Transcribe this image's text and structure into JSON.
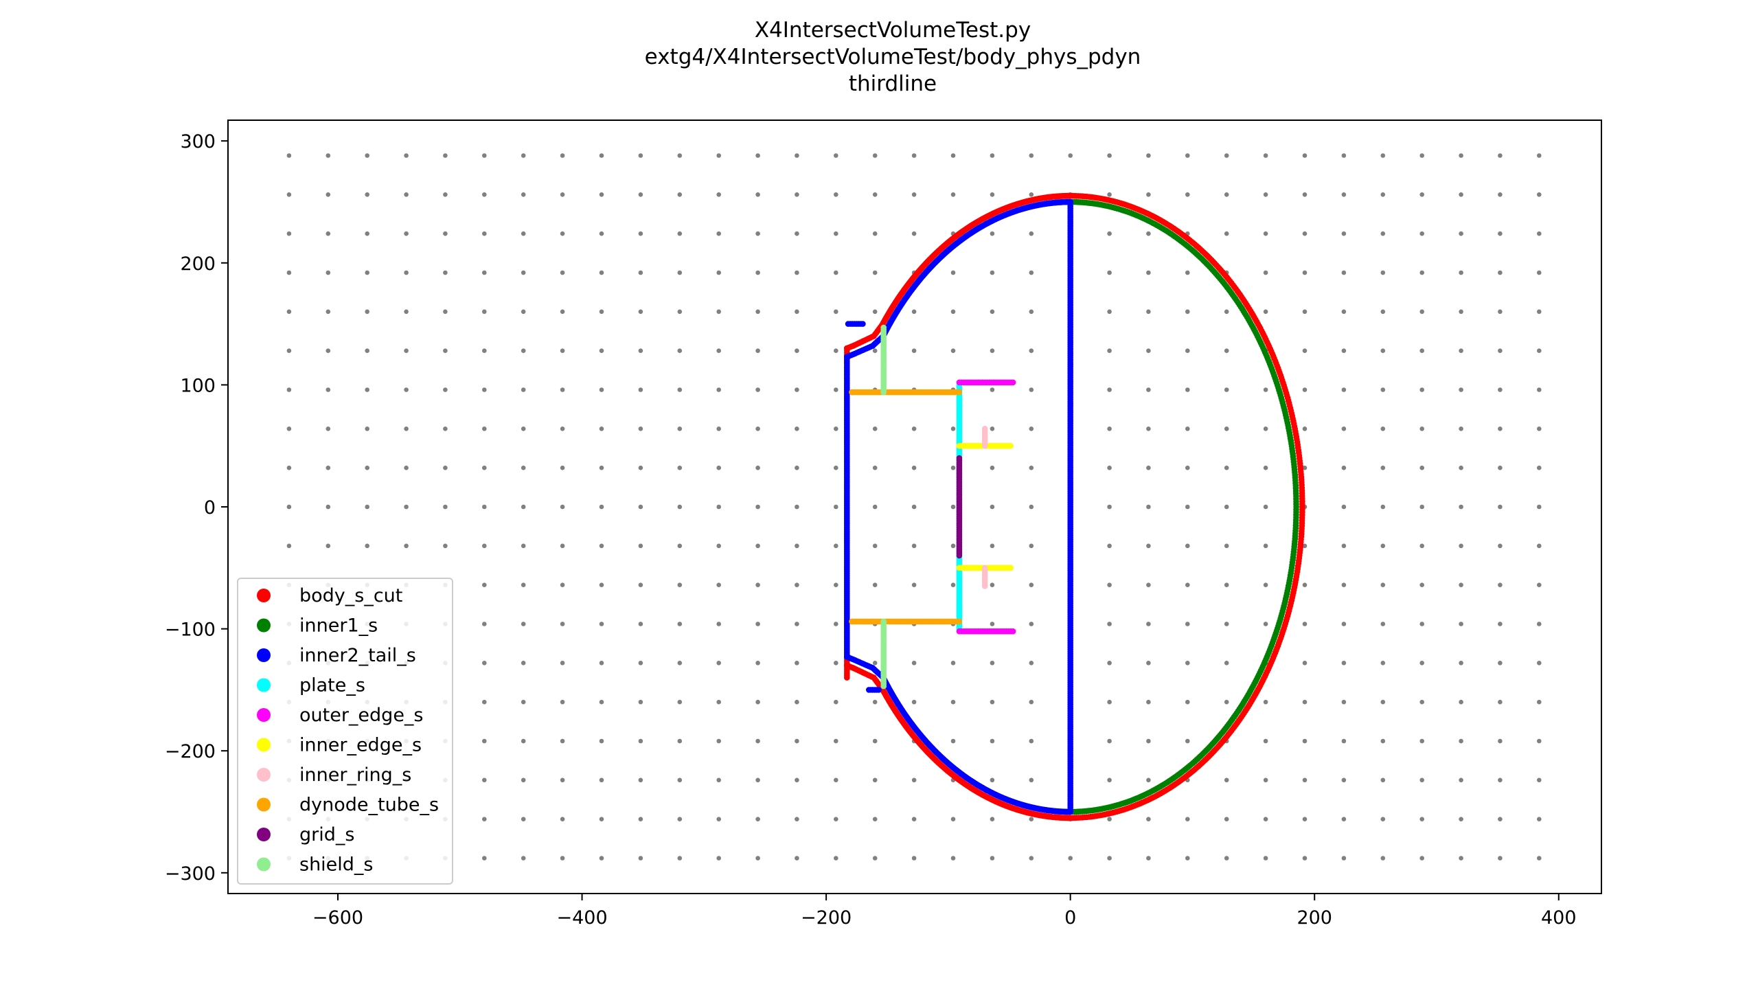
{
  "chart_data": {
    "type": "scatter",
    "title_lines": [
      "X4IntersectVolumeTest.py",
      "extg4/X4IntersectVolumeTest/body_phys_pdyn",
      "thirdline"
    ],
    "xlabel": "",
    "ylabel": "",
    "xlim": [
      -690,
      435
    ],
    "ylim": [
      -317,
      317
    ],
    "xticks": [
      -600,
      -400,
      -200,
      0,
      200,
      400
    ],
    "yticks": [
      300,
      200,
      100,
      0,
      -100,
      -200,
      -300
    ],
    "xtick_labels": [
      "−600",
      "−400",
      "−200",
      "0",
      "200",
      "400"
    ],
    "ytick_labels": [
      "300",
      "200",
      "100",
      "0",
      "−100",
      "−200",
      "−300"
    ],
    "grid": false,
    "legend_position": "lower-left",
    "background_points": {
      "color": "#808080",
      "x_start": -640,
      "x_step": 32,
      "x_count": 33,
      "y_start": 288,
      "y_step": -32,
      "y_count": 19
    },
    "series": [
      {
        "name": "body_s_cut",
        "color": "#ff0000",
        "shapes": [
          {
            "kind": "arc",
            "cx": 0,
            "cy": 0,
            "rx": 190,
            "ry": 255,
            "t0": -90,
            "t1": 90
          },
          {
            "kind": "arc",
            "cx": 0,
            "cy": 0,
            "rx": 190,
            "ry": 255,
            "t0": 90,
            "t1": 144
          },
          {
            "kind": "arc",
            "cx": 0,
            "cy": 0,
            "rx": 190,
            "ry": 255,
            "t0": 216,
            "t1": 270
          },
          {
            "kind": "polyline",
            "points": [
              [
                -153.7,
                149.9
              ],
              [
                -161,
                140
              ],
              [
                -178,
                132
              ],
              [
                -183,
                130
              ],
              [
                -183,
                -130
              ],
              [
                -178,
                -132
              ],
              [
                -161,
                -140
              ],
              [
                -153.7,
                -149.9
              ]
            ]
          },
          {
            "kind": "segment",
            "x0": -183,
            "y0": -130,
            "x1": -183,
            "y1": -140
          }
        ]
      },
      {
        "name": "inner1_s",
        "color": "#008000",
        "shapes": [
          {
            "kind": "arc",
            "cx": 0,
            "cy": 0,
            "rx": 185,
            "ry": 250,
            "t0": -90,
            "t1": 90
          }
        ]
      },
      {
        "name": "inner2_tail_s",
        "color": "#0000ff",
        "shapes": [
          {
            "kind": "arc",
            "cx": 0,
            "cy": 0,
            "rx": 185,
            "ry": 250,
            "t0": 90,
            "t1": 146
          },
          {
            "kind": "arc",
            "cx": 0,
            "cy": 0,
            "rx": 185,
            "ry": 250,
            "t0": 214,
            "t1": 270
          },
          {
            "kind": "polyline",
            "points": [
              [
                -153.4,
                139.8
              ],
              [
                -162,
                132
              ],
              [
                -178,
                125
              ],
              [
                -183,
                123
              ],
              [
                -183,
                -123
              ],
              [
                -178,
                -125
              ],
              [
                -162,
                -132
              ],
              [
                -153.4,
                -139.8
              ]
            ]
          },
          {
            "kind": "segment",
            "x0": 0,
            "y0": 250,
            "x1": 0,
            "y1": -250
          },
          {
            "kind": "segment",
            "x0": -182,
            "y0": 150,
            "x1": -170,
            "y1": 150
          },
          {
            "kind": "segment",
            "x0": -165,
            "y0": -150,
            "x1": -157,
            "y1": -150
          }
        ]
      },
      {
        "name": "plate_s",
        "color": "#00ffff",
        "shapes": [
          {
            "kind": "segment",
            "x0": -91,
            "y0": 100,
            "x1": -91,
            "y1": -100
          }
        ]
      },
      {
        "name": "outer_edge_s",
        "color": "#ff00ff",
        "shapes": [
          {
            "kind": "segment",
            "x0": -91,
            "y0": 102,
            "x1": -47,
            "y1": 102
          },
          {
            "kind": "segment",
            "x0": -91,
            "y0": -102,
            "x1": -47,
            "y1": -102
          }
        ]
      },
      {
        "name": "inner_edge_s",
        "color": "#ffff00",
        "shapes": [
          {
            "kind": "segment",
            "x0": -91,
            "y0": 50,
            "x1": -49,
            "y1": 50
          },
          {
            "kind": "segment",
            "x0": -91,
            "y0": -50,
            "x1": -49,
            "y1": -50
          }
        ]
      },
      {
        "name": "inner_ring_s",
        "color": "#ffc0cb",
        "shapes": [
          {
            "kind": "segment",
            "x0": -70,
            "y0": 64,
            "x1": -70,
            "y1": 50
          },
          {
            "kind": "segment",
            "x0": -70,
            "y0": -50,
            "x1": -70,
            "y1": -65
          }
        ]
      },
      {
        "name": "dynode_tube_s",
        "color": "#ffa500",
        "shapes": [
          {
            "kind": "segment",
            "x0": -179,
            "y0": 94,
            "x1": -91,
            "y1": 94
          },
          {
            "kind": "segment",
            "x0": -179,
            "y0": -94,
            "x1": -91,
            "y1": -94
          }
        ]
      },
      {
        "name": "grid_s",
        "color": "#800080",
        "shapes": [
          {
            "kind": "segment",
            "x0": -91,
            "y0": 40,
            "x1": -91,
            "y1": -40
          }
        ]
      },
      {
        "name": "shield_s",
        "color": "#90ee90",
        "shapes": [
          {
            "kind": "segment",
            "x0": -153,
            "y0": 147,
            "x1": -153,
            "y1": 94
          },
          {
            "kind": "segment",
            "x0": -153,
            "y0": -94,
            "x1": -153,
            "y1": -147
          }
        ]
      }
    ]
  }
}
